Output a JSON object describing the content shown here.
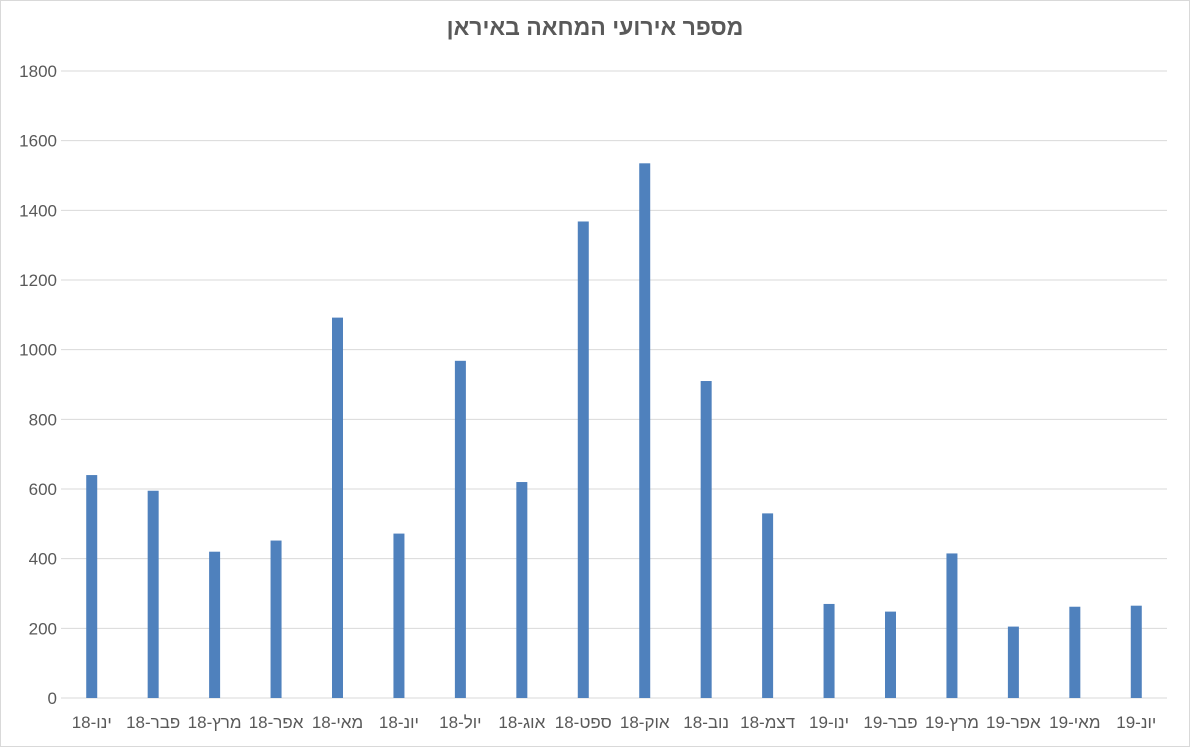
{
  "chart_data": {
    "type": "bar",
    "title": "מספר אירועי המחאה באיראן",
    "categories": [
      "ינו-18",
      "פבר-18",
      "מרץ-18",
      "אפר-18",
      "מאי-18",
      "יונ-18",
      "יול-18",
      "אוג-18",
      "ספט-18",
      "אוק-18",
      "נוב-18",
      "דצמ-18",
      "ינו-19",
      "פבר-19",
      "מרץ-19",
      "אפר-19",
      "מאי-19",
      "יונ-19"
    ],
    "values": [
      640,
      595,
      420,
      452,
      1092,
      472,
      968,
      620,
      1368,
      1535,
      910,
      530,
      270,
      248,
      415,
      205,
      262,
      265
    ],
    "yticks": [
      "0",
      "200",
      "400",
      "600",
      "800",
      "1000",
      "1200",
      "1400",
      "1600",
      "1800"
    ],
    "ylim": [
      0,
      1800
    ],
    "xlabel": "",
    "ylabel": "",
    "grid": true,
    "legend": "none",
    "bar_color": "#4f81bd",
    "grid_color": "#d9d9d9"
  }
}
